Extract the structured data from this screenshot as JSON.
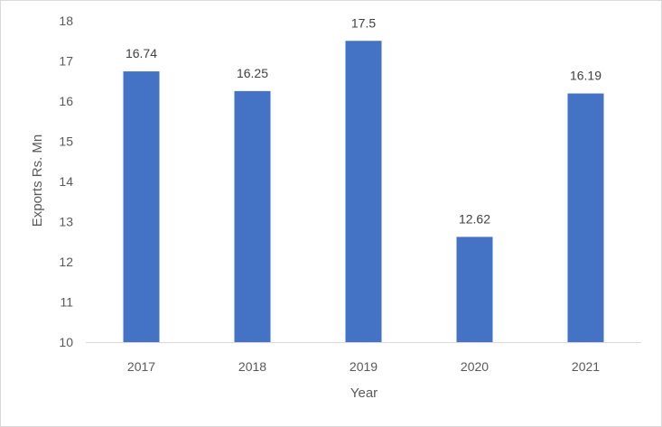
{
  "chart_data": {
    "type": "bar",
    "title": "",
    "xlabel": "Year",
    "ylabel": "Exports Rs. Mn",
    "categories": [
      "2017",
      "2018",
      "2019",
      "2020",
      "2021"
    ],
    "values": [
      16.74,
      16.25,
      17.5,
      12.62,
      16.19
    ],
    "data_labels": [
      "16.74",
      "16.25",
      "17.5",
      "12.62",
      "16.19"
    ],
    "ylim": [
      10,
      18
    ],
    "yticks": [
      "10",
      "11",
      "12",
      "13",
      "14",
      "15",
      "16",
      "17",
      "18"
    ],
    "grid": false,
    "legend": "none",
    "bar_color": "#4472C4"
  }
}
